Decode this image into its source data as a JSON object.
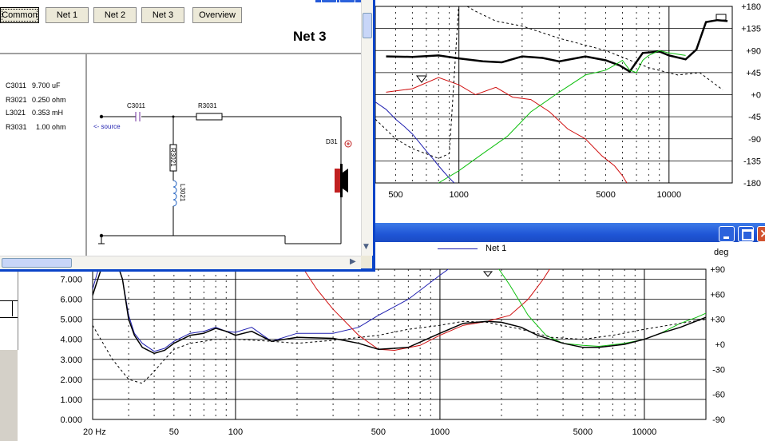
{
  "colors": {
    "title_bar_blue": "#2458d8",
    "window_frame": "#0a44c8",
    "close_red": "#d2522e",
    "curve_black": "#000000",
    "curve_red": "#d01010",
    "curve_green": "#10c010",
    "curve_blue": "#2020b0",
    "panel_gray": "#ece9d8"
  },
  "top_plot": {
    "x_ticks": [
      "500",
      "1000",
      "5000",
      "10000"
    ],
    "phase_ticks": [
      "+180",
      "+135",
      "+90",
      "+45",
      "+0",
      "-45",
      "-90",
      "-135",
      "-180"
    ]
  },
  "bottom_window": {
    "legend_net": "Net 1",
    "right_axis_unit": "deg",
    "y_ticks": [
      "7.000",
      "6.000",
      "5.000",
      "4.000",
      "3.000",
      "2.000",
      "1.000",
      "0.000"
    ],
    "right_ticks": [
      "+90",
      "+60",
      "+30",
      "+0",
      "-30",
      "-60",
      "-90"
    ],
    "x_ticks": [
      "20 Hz",
      "50",
      "100",
      "500",
      "1000",
      "5000",
      "10000"
    ]
  },
  "net_window": {
    "tabs": [
      "Common",
      "Net 1",
      "Net 2",
      "Net 3",
      "Overview"
    ],
    "heading": "Net 3",
    "components": [
      {
        "ref": "C3011",
        "value": "9.700 uF"
      },
      {
        "ref": "R3021",
        "value": "0.250 ohm"
      },
      {
        "ref": "L3021",
        "value": "0.353 mH"
      },
      {
        "ref": "R3031",
        "value": "1.00 ohm"
      }
    ],
    "schematic": {
      "cap": "C3011",
      "res_series": "R3031",
      "res_shunt": "R3021",
      "ind_shunt": "L3021",
      "driver": "D31",
      "source": "<- source",
      "plus": "⊕"
    }
  },
  "chart_data": [
    {
      "type": "line",
      "x_scale": "log",
      "xlim": [
        400,
        20000
      ],
      "ylim": [
        -180,
        180
      ],
      "y_unit": "deg",
      "x_ticks": [
        "500",
        "1000",
        "5000",
        "10000"
      ],
      "y_ticks": [
        "+180",
        "+135",
        "+90",
        "+45",
        "+0",
        "-45",
        "-90",
        "-135",
        "-180"
      ],
      "series": [
        {
          "color": "#000000",
          "width": 2.5,
          "dash": false,
          "x": [
            450,
            600,
            800,
            1000,
            1300,
            1600,
            2000,
            2500,
            3000,
            4000,
            5000,
            5800,
            6500,
            7500,
            9000,
            10000,
            12000,
            13500,
            15000,
            17000,
            19000
          ],
          "y": [
            78,
            77,
            80,
            74,
            68,
            66,
            78,
            75,
            68,
            78,
            70,
            60,
            47,
            85,
            88,
            80,
            72,
            92,
            148,
            152,
            150
          ]
        },
        {
          "color": "#d01010",
          "width": 1,
          "dash": false,
          "x": [
            450,
            600,
            800,
            1000,
            1200,
            1500,
            1800,
            2200,
            2700,
            3300,
            4000,
            4800,
            5500,
            6000,
            6300
          ],
          "y": [
            5,
            12,
            35,
            20,
            0,
            15,
            -5,
            -10,
            -35,
            -70,
            -90,
            -125,
            -145,
            -165,
            -180
          ]
        },
        {
          "color": "#10c010",
          "width": 1,
          "dash": false,
          "x": [
            800,
            1000,
            1300,
            1700,
            2200,
            3000,
            4000,
            5000,
            5500,
            6000,
            6500,
            7000,
            7500,
            8000,
            9000,
            10000,
            12000
          ],
          "y": [
            -180,
            -155,
            -120,
            -85,
            -35,
            5,
            40,
            50,
            60,
            70,
            50,
            45,
            70,
            80,
            90,
            85,
            80
          ]
        },
        {
          "color": "#2020b0",
          "width": 1,
          "dash": false,
          "x": [
            400,
            450,
            500,
            550,
            600,
            650,
            700,
            750,
            800,
            850,
            900,
            950
          ],
          "y": [
            -15,
            -30,
            -50,
            -65,
            -80,
            -98,
            -115,
            -130,
            -145,
            -158,
            -170,
            -180
          ]
        },
        {
          "color": "#000000",
          "width": 1,
          "dash": true,
          "x": [
            400,
            500,
            600,
            800,
            900,
            1000,
            1200,
            1500,
            2000,
            3000,
            5000,
            8000,
            11000,
            14000,
            18000
          ],
          "y": [
            -50,
            -90,
            -110,
            -130,
            -120,
            190,
            170,
            150,
            140,
            115,
            90,
            55,
            40,
            45,
            10
          ]
        }
      ]
    },
    {
      "type": "line",
      "x_scale": "log",
      "xlim": [
        20,
        20000
      ],
      "ylim": [
        0,
        7.5
      ],
      "right_axis": {
        "label": "deg",
        "range": [
          -90,
          90
        ]
      },
      "x_ticks": [
        "20 Hz",
        "50",
        "100",
        "500",
        "1000",
        "5000",
        "10000"
      ],
      "y_ticks": [
        "7.000",
        "6.000",
        "5.000",
        "4.000",
        "3.000",
        "2.000",
        "1.000",
        "0.000"
      ],
      "right_ticks": [
        "+90",
        "+60",
        "+30",
        "+0",
        "-30",
        "-60",
        "-90"
      ],
      "series": [
        {
          "name": "Net 1",
          "color": "#2020b0",
          "width": 1,
          "dash": false,
          "x": [
            20,
            22,
            25,
            28,
            30,
            32,
            35,
            40,
            45,
            50,
            60,
            70,
            80,
            90,
            100,
            120,
            150,
            200,
            300,
            400,
            500,
            700,
            1000,
            1500,
            2000,
            2500,
            3000
          ],
          "y": [
            6.5,
            8,
            8.5,
            7,
            5.2,
            4.3,
            3.8,
            3.4,
            3.55,
            3.9,
            4.3,
            4.4,
            4.6,
            4.4,
            4.35,
            4.6,
            3.9,
            4.3,
            4.3,
            4.6,
            5.2,
            6,
            7.2,
            8.5,
            9,
            9,
            9
          ]
        },
        {
          "color": "#d01010",
          "width": 1,
          "dash": false,
          "x": [
            200,
            250,
            300,
            400,
            500,
            600,
            800,
            1000,
            1300,
            1700,
            2200,
            2700,
            3200,
            3800
          ],
          "y": [
            8,
            6.5,
            5.5,
            4.2,
            3.5,
            3.45,
            3.7,
            4.2,
            4.7,
            4.9,
            5.2,
            6,
            7,
            8.2
          ]
        },
        {
          "color": "#10c010",
          "width": 1,
          "dash": false,
          "x": [
            1800,
            2200,
            2700,
            3300,
            4000,
            5000,
            6000,
            8000,
            10000,
            12000,
            15000,
            18000,
            20000
          ],
          "y": [
            8,
            6.7,
            5.2,
            4.2,
            3.8,
            3.7,
            3.65,
            3.8,
            4,
            4.3,
            4.8,
            5.1,
            5.3
          ]
        },
        {
          "color": "#000000",
          "width": 1.5,
          "dash": false,
          "x": [
            20,
            22,
            25,
            28,
            30,
            32,
            35,
            40,
            45,
            50,
            60,
            70,
            80,
            90,
            100,
            120,
            150,
            200,
            300,
            400,
            500,
            700,
            1000,
            1300,
            1700,
            2000,
            2500,
            3000,
            4000,
            5000,
            6000,
            8000,
            10000,
            12000,
            15000,
            20000
          ],
          "y": [
            6.2,
            7.5,
            8.5,
            7,
            5,
            4.2,
            3.6,
            3.3,
            3.45,
            3.8,
            4.2,
            4.3,
            4.55,
            4.4,
            4.2,
            4.4,
            3.9,
            4.1,
            4.05,
            3.8,
            3.5,
            3.6,
            4.3,
            4.8,
            4.9,
            4.85,
            4.6,
            4.2,
            3.8,
            3.6,
            3.6,
            3.75,
            4,
            4.3,
            4.6,
            5.1
          ]
        },
        {
          "color": "#000000",
          "width": 1,
          "dash": true,
          "x": [
            20,
            25,
            30,
            35,
            40,
            45,
            50,
            60,
            70,
            80,
            100,
            150,
            200,
            300,
            500,
            700,
            1000,
            1300,
            1700,
            2500,
            3500,
            5000,
            7000,
            10000,
            15000,
            20000
          ],
          "y": [
            4.7,
            3,
            2,
            1.8,
            2.4,
            3,
            3.5,
            3.8,
            3.9,
            4,
            4,
            3.9,
            3.8,
            3.95,
            4.2,
            4.5,
            4.7,
            4.9,
            4.85,
            4.5,
            4.1,
            4,
            4.2,
            4.5,
            4.8,
            5
          ]
        }
      ]
    }
  ]
}
